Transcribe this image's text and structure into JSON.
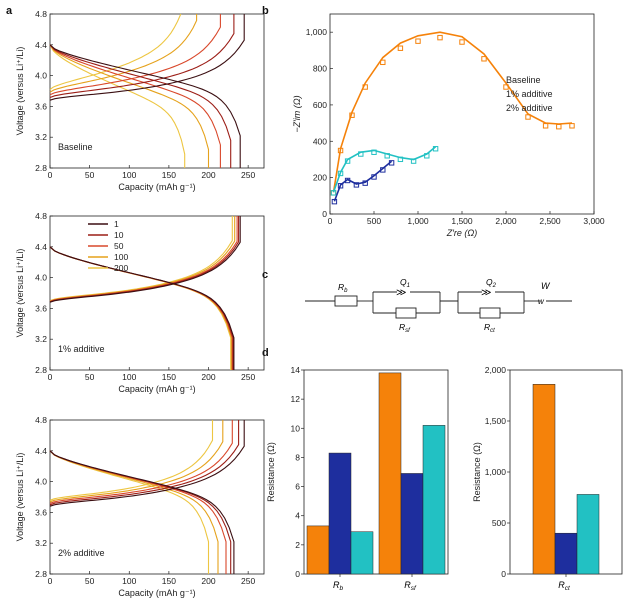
{
  "panels": {
    "a": "a",
    "b": "b",
    "c": "c",
    "d": "d"
  },
  "colors": {
    "baseline": "#F5820A",
    "additive1": "#1E2E9E",
    "additive2": "#22C1C3",
    "cycles": [
      "#3B0F12",
      "#9C1E17",
      "#D9482B",
      "#E5A21C",
      "#EDC642"
    ]
  },
  "chart_data": [
    {
      "id": "a1",
      "type": "line",
      "label": "Baseline",
      "xlabel": "Capacity (mAh g⁻¹)",
      "ylabel": "Voltage (versus Li⁺/Li)",
      "xlim": [
        0,
        270
      ],
      "ylim": [
        2.8,
        4.8
      ],
      "xticks": [
        "0",
        "50",
        "100",
        "150",
        "200",
        "250"
      ],
      "yticks": [
        "2.8",
        "3.2",
        "3.6",
        "4.0",
        "4.4",
        "4.8"
      ],
      "cycles": [
        "1",
        "10",
        "50",
        "100",
        "200"
      ],
      "charge_end": [
        245,
        232,
        215,
        185,
        165
      ],
      "discharge_end": [
        240,
        228,
        215,
        200,
        170
      ],
      "charge_start_v": [
        3.68,
        3.7,
        3.72,
        3.76,
        3.82
      ],
      "discharge_end_v": [
        2.8,
        2.8,
        2.8,
        2.8,
        2.8
      ]
    },
    {
      "id": "a2",
      "type": "line",
      "label": "1% additive",
      "xlabel": "Capacity (mAh g⁻¹)",
      "ylabel": "Voltage (versus Li⁺/Li)",
      "xlim": [
        0,
        270
      ],
      "ylim": [
        2.8,
        4.8
      ],
      "xticks": [
        "0",
        "50",
        "100",
        "150",
        "200",
        "250"
      ],
      "yticks": [
        "2.8",
        "3.2",
        "3.6",
        "4.0",
        "4.4",
        "4.8"
      ],
      "legend": [
        "1",
        "10",
        "50",
        "100",
        "200"
      ],
      "charge_end": [
        240,
        238,
        236,
        233,
        230
      ],
      "discharge_end": [
        232,
        231,
        230,
        229,
        228
      ]
    },
    {
      "id": "a3",
      "type": "line",
      "label": "2% additive",
      "xlabel": "Capacity (mAh g⁻¹)",
      "ylabel": "Voltage (versus Li⁺/Li)",
      "xlim": [
        0,
        270
      ],
      "ylim": [
        2.8,
        4.8
      ],
      "xticks": [
        "0",
        "50",
        "100",
        "150",
        "200",
        "250"
      ],
      "yticks": [
        "2.8",
        "3.2",
        "3.6",
        "4.0",
        "4.4",
        "4.8"
      ],
      "charge_end": [
        245,
        238,
        230,
        218,
        205
      ],
      "discharge_end": [
        232,
        228,
        222,
        212,
        200
      ]
    },
    {
      "id": "b",
      "type": "scatter",
      "xlabel": "Z′re (Ω)",
      "ylabel": "−Z′im (Ω)",
      "xlim": [
        0,
        3000
      ],
      "ylim": [
        0,
        1100
      ],
      "xticks": [
        "0",
        "500",
        "1,000",
        "1,500",
        "2,000",
        "2,500",
        "3,000"
      ],
      "yticks": [
        "0",
        "200",
        "400",
        "600",
        "800",
        "1,000"
      ],
      "series": [
        {
          "name": "Baseline",
          "points": [
            [
              40,
              120
            ],
            [
              120,
              360
            ],
            [
              250,
              560
            ],
            [
              400,
              720
            ],
            [
              600,
              860
            ],
            [
              800,
              940
            ],
            [
              1000,
              980
            ],
            [
              1250,
              1000
            ],
            [
              1500,
              975
            ],
            [
              1750,
              880
            ],
            [
              2000,
              720
            ],
            [
              2250,
              550
            ],
            [
              2450,
              500
            ],
            [
              2600,
              495
            ],
            [
              2750,
              500
            ]
          ]
        },
        {
          "name": "1% additive",
          "points": [
            [
              50,
              70
            ],
            [
              120,
              160
            ],
            [
              200,
              190
            ],
            [
              300,
              165
            ],
            [
              400,
              175
            ],
            [
              500,
              210
            ],
            [
              600,
              250
            ],
            [
              700,
              290
            ]
          ]
        },
        {
          "name": "2% additive",
          "points": [
            [
              40,
              120
            ],
            [
              120,
              230
            ],
            [
              200,
              300
            ],
            [
              350,
              340
            ],
            [
              500,
              350
            ],
            [
              650,
              330
            ],
            [
              800,
              310
            ],
            [
              950,
              300
            ],
            [
              1100,
              330
            ],
            [
              1200,
              370
            ]
          ]
        }
      ]
    },
    {
      "id": "d1",
      "type": "bar",
      "ylabel": "Resistance (Ω)",
      "ylim": [
        0,
        14
      ],
      "yticks": [
        "0",
        "2",
        "4",
        "6",
        "8",
        "10",
        "12",
        "14"
      ],
      "categories": [
        "R_b",
        "R_sf"
      ],
      "series": [
        {
          "name": "Baseline",
          "values": [
            3.3,
            13.8
          ]
        },
        {
          "name": "1% additive",
          "values": [
            8.3,
            6.9
          ]
        },
        {
          "name": "2% additive",
          "values": [
            2.9,
            10.2
          ]
        }
      ]
    },
    {
      "id": "d2",
      "type": "bar",
      "ylabel": "Resistance (Ω)",
      "ylim": [
        0,
        2000
      ],
      "yticks": [
        "0",
        "500",
        "1,000",
        "1,500",
        "2,000"
      ],
      "categories": [
        "R_ct"
      ],
      "series": [
        {
          "name": "Baseline",
          "values": [
            1860
          ]
        },
        {
          "name": "1% additive",
          "values": [
            400
          ]
        },
        {
          "name": "2% additive",
          "values": [
            780
          ]
        }
      ]
    }
  ],
  "circuit": {
    "elements": [
      "R_b",
      "Q_1",
      "R_sf",
      "Q_2",
      "R_ct",
      "W"
    ],
    "w_lower": "w"
  }
}
